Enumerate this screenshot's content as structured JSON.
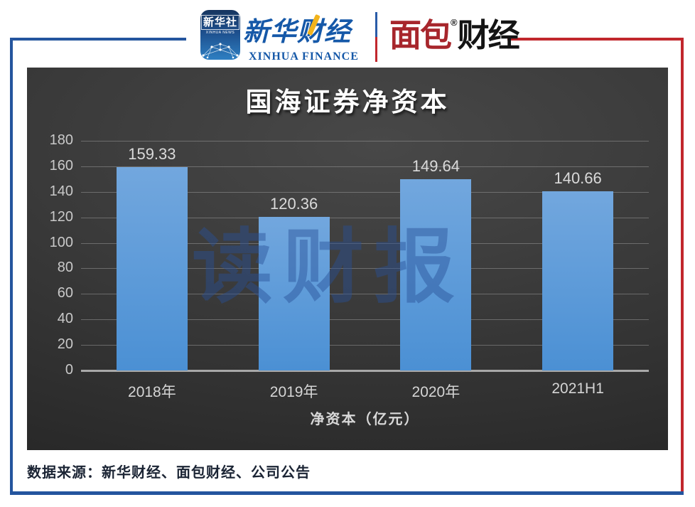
{
  "header": {
    "xinhua_icon": {
      "line1": "新华社",
      "line2": "XINHUA NEWS"
    },
    "xinhua_finance": {
      "cn": "新华财经",
      "en": "XINHUA FINANCE"
    },
    "mianbao": {
      "cn_red": "面包",
      "reg": "®",
      "cn_black": "财经"
    }
  },
  "chart_data": {
    "type": "bar",
    "title": "国海证券净资本",
    "categories": [
      "2018年",
      "2019年",
      "2020年",
      "2021H1"
    ],
    "values": [
      159.33,
      120.36,
      149.64,
      140.66
    ],
    "value_labels": [
      "159.33",
      "120.36",
      "149.64",
      "140.66"
    ],
    "xlabel": "净资本（亿元）",
    "ylabel": "",
    "ylim": [
      0,
      180
    ],
    "yticks": [
      180,
      160,
      140,
      120,
      100,
      80,
      60,
      40,
      20,
      0
    ],
    "grid": "horizontal",
    "legend": "none",
    "watermark": "读财报",
    "bar_color_top": "#72a7de",
    "bar_color_bottom": "#4b90d4",
    "background": "#3a3a3a",
    "gridline_color": "#969696",
    "label_color": "#d8d8d8"
  },
  "footer": {
    "source": "数据来源：新华财经、面包财经、公司公告"
  },
  "colors": {
    "frame_blue": "#24559e",
    "frame_red": "#c1272d",
    "logo_blue": "#1558a8",
    "logo_red": "#a7262c",
    "watermark_blue": "rgba(40,80,150,0.45)"
  }
}
